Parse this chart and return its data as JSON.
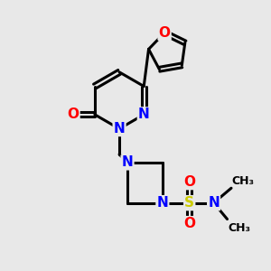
{
  "bg_color": "#e8e8e8",
  "bond_color": "#000000",
  "bond_width": 2.2,
  "atom_colors": {
    "N": "#0000ff",
    "O": "#ff0000",
    "S": "#cccc00",
    "C": "#000000"
  },
  "font_size_atom": 11,
  "font_size_methyl": 9,
  "figsize": [
    3.0,
    3.0
  ],
  "dpi": 100,
  "xlim": [
    0,
    10
  ],
  "ylim": [
    0,
    10
  ]
}
